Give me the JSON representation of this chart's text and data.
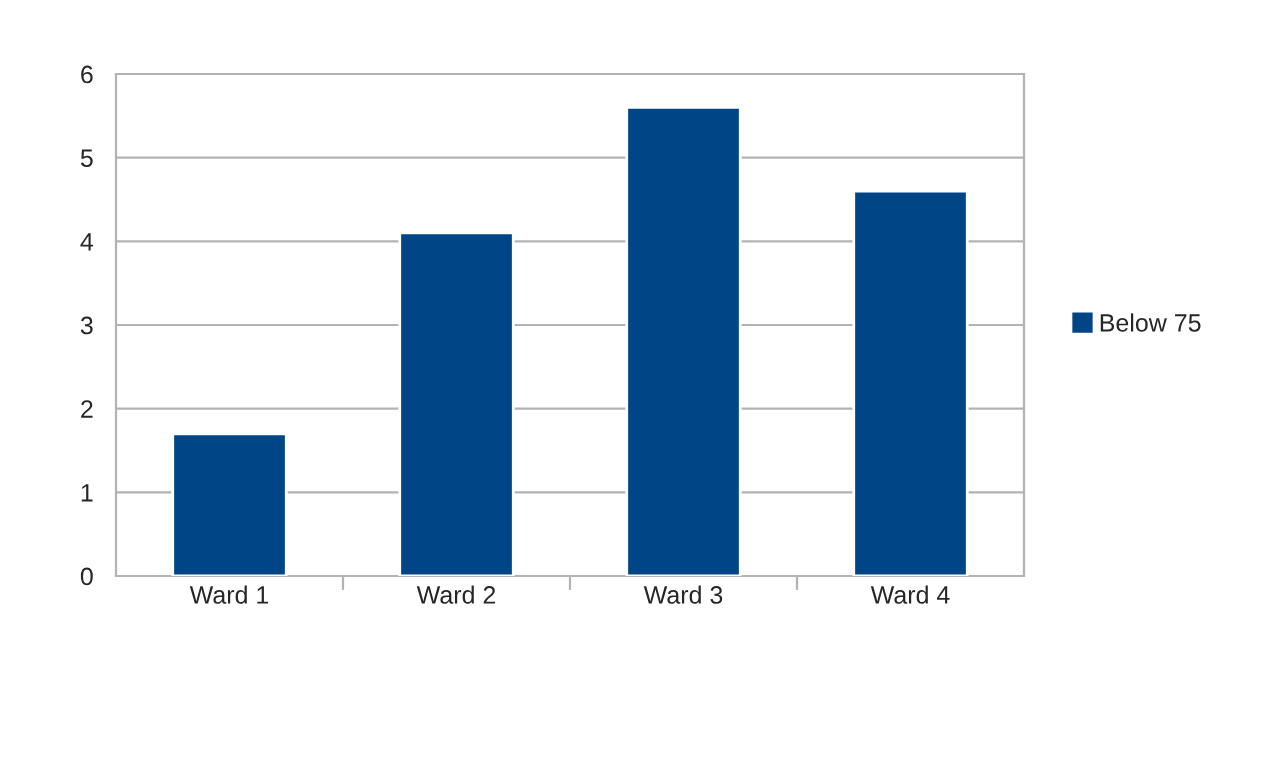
{
  "chart_data": {
    "type": "bar",
    "categories": [
      "Ward 1",
      "Ward 2",
      "Ward 3",
      "Ward 4"
    ],
    "series": [
      {
        "name": "Below 75",
        "color": "#004586",
        "values": [
          1.7,
          4.1,
          5.6,
          4.6
        ]
      }
    ],
    "ylim": [
      0,
      6
    ],
    "yticks": [
      0,
      1,
      2,
      3,
      4,
      5,
      6
    ],
    "grid": "y",
    "legend": "right"
  }
}
